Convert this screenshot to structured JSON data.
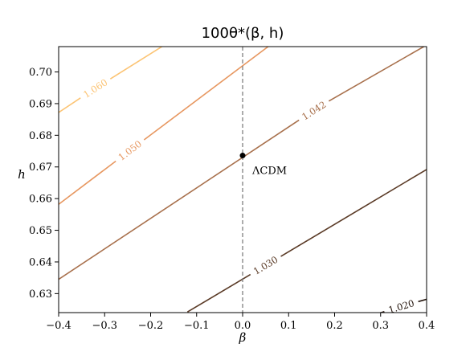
{
  "chart_data": {
    "type": "contour",
    "title": "100θ*(β, h)",
    "xlabel": "β",
    "ylabel": "h",
    "xlim": [
      -0.4,
      0.4
    ],
    "ylim": [
      0.624,
      0.708
    ],
    "xticks": [
      "−0.4",
      "−0.3",
      "−0.2",
      "−0.1",
      "0.0",
      "0.1",
      "0.2",
      "0.3",
      "0.4"
    ],
    "yticks": [
      "0.63",
      "0.64",
      "0.65",
      "0.66",
      "0.67",
      "0.68",
      "0.69",
      "0.70"
    ],
    "grid": false,
    "contours": [
      {
        "level": "1.020",
        "color": "#23140c",
        "x": [
          0.29,
          0.4
        ],
        "y": [
          0.6235,
          0.6282
        ],
        "label_at": [
          0.345,
          0.6259
        ]
      },
      {
        "level": "1.030",
        "color": "#5a3a26",
        "x": [
          -0.12,
          0.4
        ],
        "y": [
          0.6242,
          0.6692
        ],
        "label_at": [
          0.05,
          0.6389
        ]
      },
      {
        "level": "1.042",
        "color": "#a8704c",
        "x": [
          -0.4,
          0.4
        ],
        "y": [
          0.6345,
          0.7085
        ],
        "label_at": [
          0.155,
          0.6878
        ]
      },
      {
        "level": "1.050",
        "color": "#e79760",
        "x": [
          -0.4,
          0.06
        ],
        "y": [
          0.6582,
          0.7085
        ],
        "label_at": [
          -0.245,
          0.6752
        ]
      },
      {
        "level": "1.060",
        "color": "#fcc474",
        "x": [
          -0.4,
          -0.17
        ],
        "y": [
          0.6872,
          0.7085
        ],
        "label_at": [
          -0.32,
          0.6948
        ]
      }
    ],
    "vline": {
      "x": 0.0,
      "style": "dashed",
      "color": "#808080"
    },
    "point": {
      "x": 0.0,
      "y": 0.6736,
      "label": "ΛCDM"
    }
  }
}
